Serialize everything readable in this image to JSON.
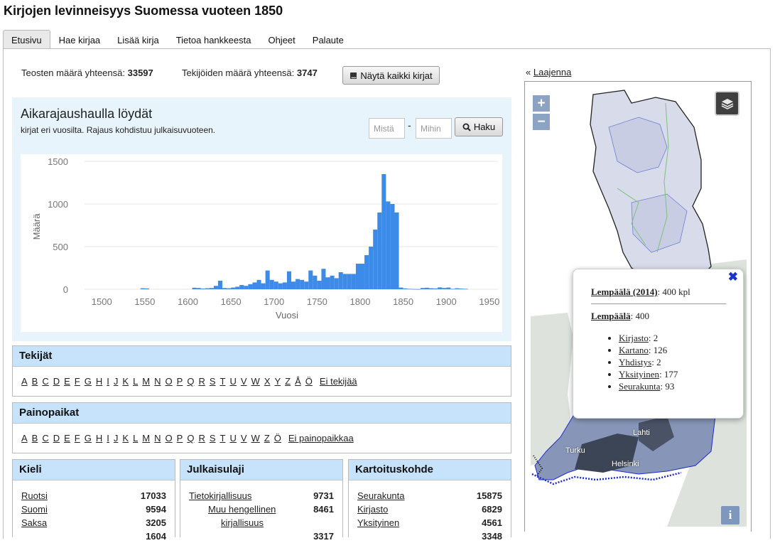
{
  "site_title": "Kirjojen levinneisyys Suomessa vuoteen 1850",
  "tabs": [
    "Etusivu",
    "Hae kirjaa",
    "Lisää kirja",
    "Tietoa hankkeesta",
    "Ohjeet",
    "Palaute"
  ],
  "stats": {
    "texts_label": "Teosten määrä yhteensä:",
    "texts_value": "33597",
    "authors_label": "Tekijöiden määrä yhteensä:",
    "authors_value": "3747",
    "show_all_label": "Näytä kaikki kirjat"
  },
  "time_search": {
    "title": "Aikarajaushaulla löydät",
    "subtitle": "kirjat eri vuosilta. Rajaus kohdistuu julkaisuvuoteen.",
    "from_placeholder": "Mistä",
    "to_placeholder": "Mihin",
    "separator": "-",
    "button_label": "Haku"
  },
  "chart_data": {
    "type": "bar",
    "xlabel": "Vuosi",
    "ylabel": "Määrä",
    "xlim": [
      1480,
      1960
    ],
    "ylim": [
      0,
      1500
    ],
    "x_ticks": [
      1500,
      1550,
      1600,
      1650,
      1700,
      1750,
      1800,
      1850,
      1900,
      1950
    ],
    "y_ticks": [
      0,
      500,
      1000,
      1500
    ],
    "bin_width": 5,
    "bar_color": "#3d8be8",
    "x": [
      1545,
      1550,
      1605,
      1610,
      1615,
      1620,
      1625,
      1630,
      1635,
      1640,
      1645,
      1650,
      1655,
      1660,
      1665,
      1670,
      1675,
      1680,
      1685,
      1690,
      1695,
      1700,
      1705,
      1710,
      1715,
      1720,
      1725,
      1730,
      1735,
      1740,
      1745,
      1750,
      1755,
      1760,
      1765,
      1770,
      1775,
      1780,
      1785,
      1790,
      1795,
      1800,
      1805,
      1810,
      1815,
      1820,
      1825,
      1830,
      1835,
      1840,
      1845,
      1850,
      1855,
      1860,
      1865,
      1870,
      1875,
      1880,
      1885,
      1890,
      1895,
      1900,
      1905,
      1910,
      1915,
      1920
    ],
    "values": [
      12,
      10,
      18,
      15,
      8,
      12,
      15,
      40,
      100,
      15,
      12,
      20,
      30,
      50,
      40,
      60,
      80,
      110,
      70,
      220,
      110,
      90,
      70,
      80,
      210,
      90,
      120,
      110,
      90,
      220,
      160,
      100,
      240,
      140,
      160,
      130,
      200,
      180,
      180,
      180,
      300,
      300,
      400,
      500,
      700,
      900,
      1350,
      1030,
      1000,
      900,
      20,
      10,
      5,
      3,
      2,
      15,
      18,
      12,
      10,
      22,
      15,
      20,
      5,
      12,
      8,
      5
    ]
  },
  "authors_box": {
    "title": "Tekijät",
    "letters": [
      "A",
      "B",
      "C",
      "D",
      "E",
      "F",
      "G",
      "H",
      "I",
      "J",
      "K",
      "L",
      "M",
      "N",
      "O",
      "P",
      "Q",
      "R",
      "S",
      "T",
      "U",
      "V",
      "W",
      "X",
      "Y",
      "Z",
      "Å",
      "Ö"
    ],
    "last_link": "Ei tekijää"
  },
  "places_box": {
    "title": "Painopaikat",
    "letters": [
      "A",
      "B",
      "C",
      "D",
      "E",
      "F",
      "G",
      "H",
      "I",
      "J",
      "K",
      "L",
      "M",
      "N",
      "O",
      "P",
      "Q",
      "R",
      "S",
      "T",
      "U",
      "V",
      "W",
      "Z",
      "Ö"
    ],
    "last_link": "Ei painopaikkaa"
  },
  "language_box": {
    "title": "Kieli",
    "rows": [
      {
        "label": "Ruotsi",
        "count": "17033"
      },
      {
        "label": "Suomi",
        "count": "9594"
      },
      {
        "label": "Saksa",
        "count": "3205"
      },
      {
        "label": "",
        "count": "1604"
      }
    ]
  },
  "genre_box": {
    "title": "Julkaisulaji",
    "rows": [
      {
        "label": "Tietokirjallisuus",
        "count": "9731"
      },
      {
        "label": "Muu hengellinen",
        "count": "8461"
      },
      {
        "label": "kirjallisuus",
        "count": ""
      },
      {
        "label": "",
        "count": "3317"
      }
    ]
  },
  "target_box": {
    "title": "Kartoituskohde",
    "rows": [
      {
        "label": "Seurakunta",
        "count": "15875"
      },
      {
        "label": "Kirjasto",
        "count": "6829"
      },
      {
        "label": "Yksityinen",
        "count": "4561"
      },
      {
        "label": "",
        "count": "3348"
      }
    ]
  },
  "map": {
    "expand_prefix": "«",
    "expand_label": "Laajenna",
    "zoom_in": "+",
    "zoom_out": "−",
    "info": "i",
    "cities": [
      "Lahti",
      "Turku",
      "Helsinki"
    ],
    "popup": {
      "close": "✖",
      "place_year_link": "Lempäälä (2014)",
      "place_year_value": ": 400 kpl",
      "place_link": "Lempäälä",
      "place_value": ": 400",
      "items": [
        {
          "label": "Kirjasto",
          "value": ": 2"
        },
        {
          "label": "Kartano",
          "value": ": 126"
        },
        {
          "label": "Yhdistys",
          "value": ": 2"
        },
        {
          "label": "Yksityinen",
          "value": ": 177"
        },
        {
          "label": "Seurakunta",
          "value": ": 93"
        }
      ]
    },
    "colors": {
      "sea": "#ffffff",
      "land": "#dde3dc",
      "region": "#d7dbea",
      "dark_region": "#3c4556",
      "boundary": "#6d7fd6",
      "popup_close": "#1a33cc"
    }
  }
}
